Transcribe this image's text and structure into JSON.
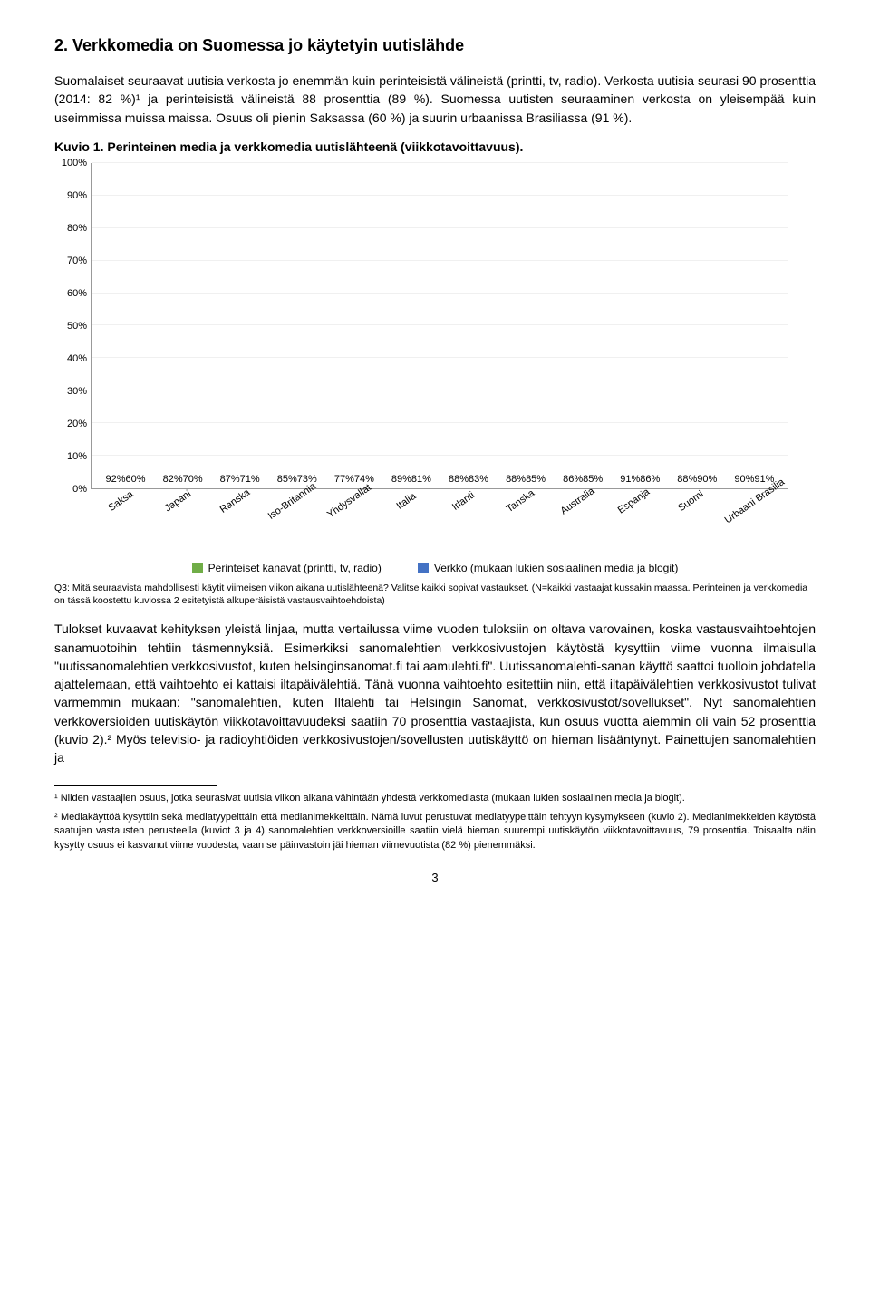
{
  "heading": "2. Verkkomedia on Suomessa jo käytetyin uutislähde",
  "intro": "Suomalaiset seuraavat uutisia verkosta jo enemmän kuin perinteisistä välineistä (printti, tv, radio). Verkosta uutisia seurasi 90 prosenttia (2014: 82 %)¹ ja perinteisistä välineistä 88 prosenttia (89 %). Suomessa uutisten seuraaminen verkosta on yleisempää kuin useimmissa muissa maissa. Osuus oli pienin Saksassa (60 %) ja suurin urbaanissa Brasiliassa (91 %).",
  "kuvio_label": "Kuvio 1.",
  "kuvio_title": "Perinteinen media ja verkkomedia uutislähteenä (viikkotavoittavuus).",
  "chart": {
    "type": "bar",
    "ylim": [
      0,
      100
    ],
    "ytick_step": 10,
    "bar_colors": {
      "series_a": "#70ad47",
      "series_b": "#4472c4"
    },
    "grid_color": "#f0f0f0",
    "axis_color": "#999999",
    "label_fontsize": 11,
    "tick_fontsize": 11,
    "categories": [
      "Saksa",
      "Japani",
      "Ranska",
      "Iso-Britannia",
      "Yhdysvallat",
      "Italia",
      "Irlanti",
      "Tanska",
      "Australia",
      "Espanja",
      "Suomi",
      "Urbaani Brasilia"
    ],
    "series": [
      {
        "name": "Perinteiset kanavat (printti, tv, radio)",
        "values": [
          92,
          82,
          87,
          85,
          77,
          89,
          88,
          88,
          86,
          91,
          88,
          90
        ]
      },
      {
        "name": "Verkko (mukaan lukien sosiaalinen media ja blogit)",
        "values": [
          60,
          70,
          71,
          73,
          74,
          81,
          83,
          85,
          85,
          86,
          90,
          91
        ]
      }
    ],
    "legend": {
      "a": "Perinteiset kanavat (printti, tv, radio)",
      "b": "Verkko (mukaan lukien sosiaalinen media ja blogit)"
    }
  },
  "chart_note": "Q3: Mitä seuraavista mahdollisesti käytit viimeisen viikon aikana uutislähteenä? Valitse kaikki sopivat vastaukset. (N=kaikki vastaajat kussakin maassa. Perinteinen ja verkkomedia on tässä koostettu kuviossa 2 esitetyistä alkuperäisistä vastausvaihtoehdoista)",
  "body": "Tulokset kuvaavat kehityksen yleistä linjaa, mutta vertailussa viime vuoden tuloksiin on oltava varovainen, koska vastausvaihtoehtojen sanamuotoihin tehtiin täsmennyksiä. Esimerkiksi sanomalehtien verkkosivustojen käytöstä kysyttiin viime vuonna ilmaisulla \"uutissanomalehtien verkkosivustot, kuten helsinginsanomat.fi tai aamulehti.fi\". Uutissanomalehti-sanan käyttö saattoi tuolloin johdatella ajattelemaan, että vaihtoehto ei kattaisi iltapäivälehtiä. Tänä vuonna vaihtoehto esitettiin niin, että iltapäivälehtien verkkosivustot tulivat varmemmin mukaan: \"sanomalehtien, kuten Iltalehti tai Helsingin Sanomat, verkkosivustot/sovellukset\". Nyt sanomalehtien verkkoversioiden uutiskäytön viikkotavoittavuudeksi saatiin 70 prosenttia vastaajista, kun osuus vuotta aiemmin oli vain 52 prosenttia (kuvio 2).² Myös televisio- ja radioyhtiöiden verkkosivustojen/sovellusten uutiskäyttö on hieman lisääntynyt. Painettujen sanomalehtien ja",
  "footnotes": {
    "f1": "¹ Niiden vastaajien osuus, jotka seurasivat uutisia viikon aikana vähintään yhdestä verkkomediasta (mukaan lukien sosiaalinen media ja blogit).",
    "f2": "² Mediakäyttöä kysyttiin sekä mediatyypeittäin että medianimekkeittäin. Nämä luvut perustuvat mediatyypeittäin tehtyyn kysymykseen (kuvio 2). Medianimekkeiden käytöstä saatujen vastausten perusteella (kuviot 3 ja 4) sanomalehtien verkkoversioille saatiin vielä hieman suurempi uutiskäytön viikkotavoittavuus, 79 prosenttia. Toisaalta näin kysytty osuus ei kasvanut viime vuodesta, vaan se päinvastoin jäi hieman viimevuotista (82 %) pienemmäksi."
  },
  "page_number": "3"
}
